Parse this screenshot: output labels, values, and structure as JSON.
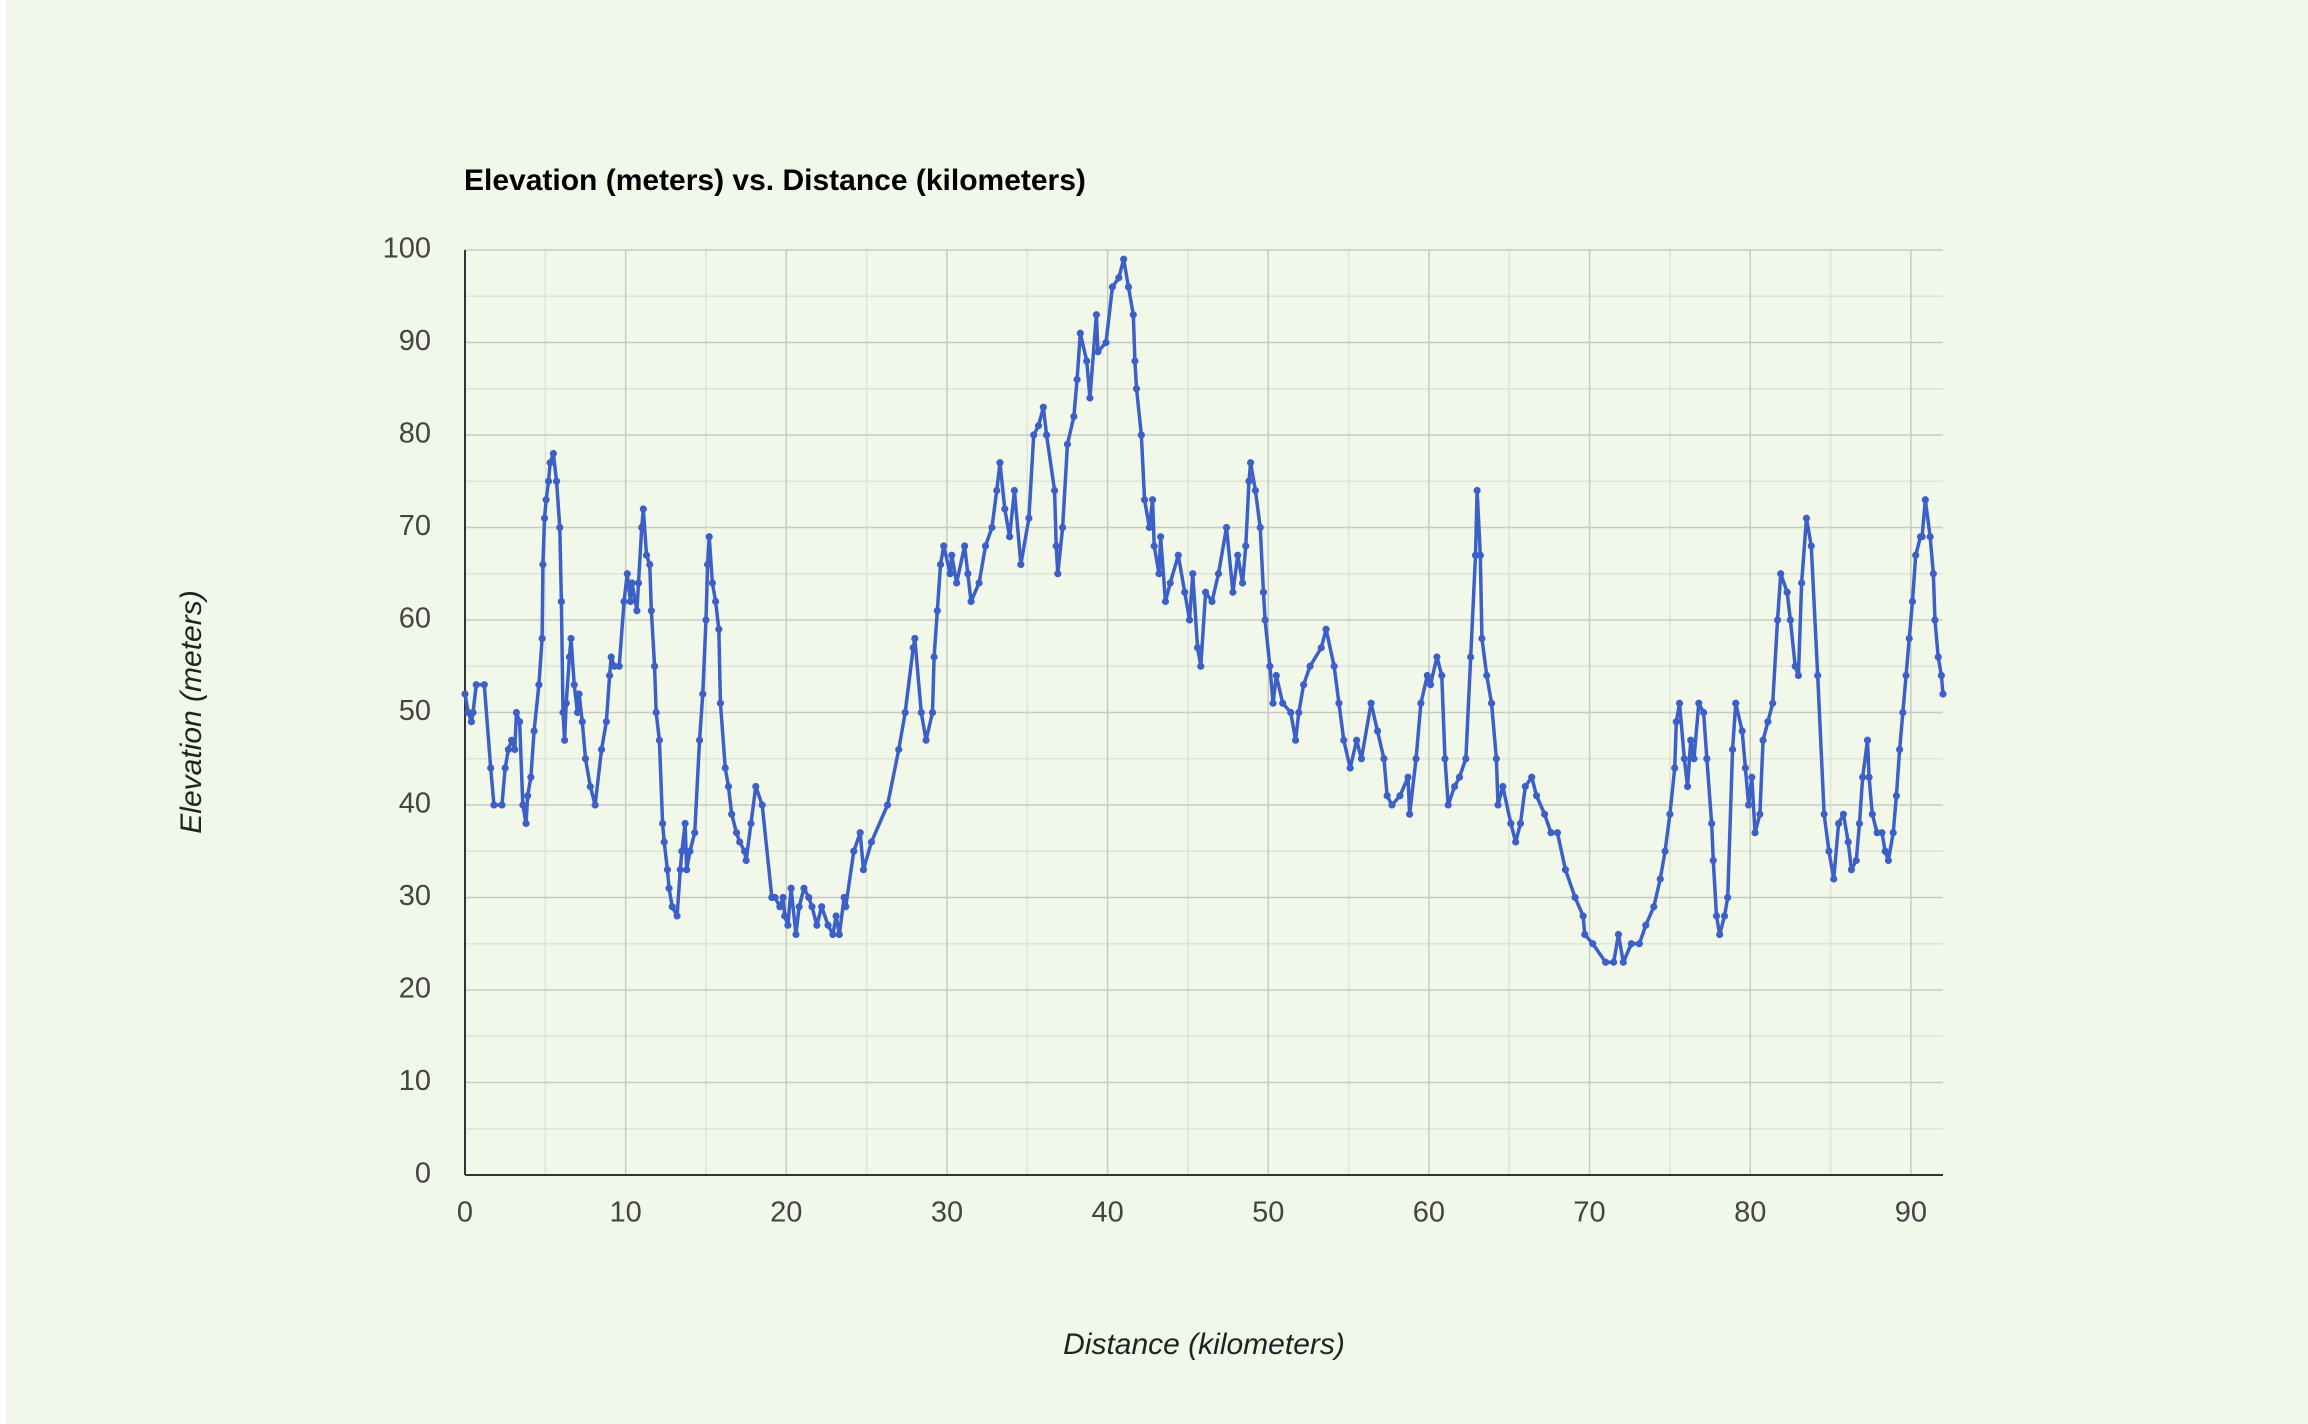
{
  "chart_data": {
    "type": "line",
    "title": "Elevation (meters) vs. Distance (kilometers)",
    "x_label": "Distance (kilometers)",
    "y_label": "Elevation (meters)",
    "color": "#3d5fc8",
    "grid": true,
    "minor_grid": true,
    "xlim": [
      0,
      92
    ],
    "xticks": [
      0,
      10,
      20,
      30,
      40,
      50,
      60,
      70,
      80,
      90
    ],
    "ylim": [
      0,
      100
    ],
    "yticks": [
      0,
      10,
      20,
      30,
      40,
      50,
      60,
      70,
      80,
      90,
      100
    ],
    "x": [
      0,
      0.2,
      0.4,
      0.5,
      0.7,
      1.2,
      1.6,
      1.8,
      2.3,
      2.5,
      2.7,
      2.9,
      3.1,
      3.2,
      3.4,
      3.6,
      3.8,
      3.9,
      4.1,
      4.3,
      4.6,
      4.8,
      4.85,
      4.95,
      5.05,
      5.2,
      5.3,
      5.5,
      5.7,
      5.9,
      6.0,
      6.1,
      6.2,
      6.3,
      6.5,
      6.6,
      6.8,
      7.0,
      7.1,
      7.3,
      7.5,
      7.8,
      8.1,
      8.5,
      8.8,
      9.0,
      9.1,
      9.3,
      9.6,
      9.9,
      10.1,
      10.3,
      10.4,
      10.7,
      10.8,
      11.0,
      11.1,
      11.3,
      11.5,
      11.6,
      11.8,
      11.9,
      12.1,
      12.3,
      12.4,
      12.6,
      12.7,
      12.9,
      13.2,
      13.4,
      13.5,
      13.7,
      13.8,
      14.0,
      14.3,
      14.6,
      14.8,
      15.0,
      15.1,
      15.2,
      15.4,
      15.6,
      15.8,
      15.9,
      16.2,
      16.4,
      16.6,
      16.9,
      17.1,
      17.4,
      17.5,
      17.8,
      18.1,
      18.5,
      19.1,
      19.3,
      19.6,
      19.8,
      19.9,
      20.1,
      20.3,
      20.6,
      20.8,
      21.1,
      21.4,
      21.6,
      21.9,
      22.2,
      22.6,
      22.9,
      23.1,
      23.3,
      23.6,
      23.7,
      24.2,
      24.6,
      24.8,
      25.3,
      26.3,
      27.0,
      27.4,
      27.9,
      28.0,
      28.4,
      28.7,
      29.1,
      29.2,
      29.4,
      29.6,
      29.8,
      30.2,
      30.3,
      30.6,
      31.1,
      31.3,
      31.5,
      32.0,
      32.4,
      32.8,
      33.1,
      33.3,
      33.6,
      33.9,
      34.2,
      34.6,
      35.1,
      35.4,
      35.7,
      36.0,
      36.2,
      36.7,
      36.8,
      36.9,
      37.2,
      37.5,
      37.9,
      38.1,
      38.3,
      38.7,
      38.9,
      39.3,
      39.4,
      39.9,
      40.3,
      40.7,
      41.0,
      41.3,
      41.6,
      41.7,
      41.8,
      42.1,
      42.3,
      42.6,
      42.8,
      42.9,
      43.2,
      43.3,
      43.6,
      43.9,
      44.4,
      44.8,
      45.1,
      45.3,
      45.6,
      45.8,
      46.1,
      46.5,
      46.9,
      47.4,
      47.8,
      48.1,
      48.4,
      48.6,
      48.8,
      48.9,
      49.2,
      49.5,
      49.7,
      49.8,
      50.1,
      50.3,
      50.5,
      50.9,
      51.4,
      51.7,
      51.9,
      52.2,
      52.6,
      53.3,
      53.6,
      54.1,
      54.4,
      54.7,
      55.1,
      55.5,
      55.8,
      56.4,
      56.8,
      57.2,
      57.4,
      57.7,
      58.2,
      58.7,
      58.8,
      59.2,
      59.5,
      59.9,
      60.1,
      60.5,
      60.8,
      61.0,
      61.2,
      61.6,
      61.9,
      62.3,
      62.6,
      62.9,
      63.0,
      63.2,
      63.3,
      63.6,
      63.9,
      64.2,
      64.3,
      64.6,
      65.1,
      65.4,
      65.7,
      66.0,
      66.4,
      66.7,
      67.2,
      67.6,
      68.0,
      68.5,
      69.1,
      69.6,
      69.7,
      70.2,
      71.0,
      71.5,
      71.8,
      72.1,
      72.6,
      73.1,
      73.5,
      74.0,
      74.4,
      74.7,
      75.0,
      75.3,
      75.4,
      75.6,
      75.9,
      76.1,
      76.3,
      76.5,
      76.8,
      77.1,
      77.3,
      77.6,
      77.7,
      77.9,
      78.1,
      78.4,
      78.6,
      78.9,
      79.1,
      79.5,
      79.7,
      79.9,
      80.1,
      80.3,
      80.6,
      80.8,
      81.1,
      81.4,
      81.7,
      81.9,
      82.3,
      82.5,
      82.8,
      83.0,
      83.2,
      83.5,
      83.8,
      84.2,
      84.6,
      84.9,
      85.2,
      85.5,
      85.8,
      86.1,
      86.3,
      86.6,
      86.8,
      87.0,
      87.3,
      87.4,
      87.6,
      87.9,
      88.2,
      88.4,
      88.6,
      88.9,
      89.1,
      89.3,
      89.5,
      89.7,
      89.9,
      90.1,
      90.3,
      90.6,
      90.7,
      90.9,
      91.2,
      91.4,
      91.5,
      91.7,
      91.9,
      92.0
    ],
    "values": [
      52,
      50,
      49,
      50,
      53,
      53,
      44,
      40,
      40,
      44,
      46,
      47,
      46,
      50,
      49,
      40,
      38,
      41,
      43,
      48,
      53,
      58,
      66,
      71,
      73,
      75,
      77,
      78,
      75,
      70,
      62,
      50,
      47,
      51,
      56,
      58,
      53,
      50,
      52,
      49,
      45,
      42,
      40,
      46,
      49,
      54,
      56,
      55,
      55,
      62,
      65,
      62,
      64,
      61,
      64,
      70,
      72,
      67,
      66,
      61,
      55,
      50,
      47,
      38,
      36,
      33,
      31,
      29,
      28,
      33,
      35,
      38,
      33,
      35,
      37,
      47,
      52,
      60,
      66,
      69,
      64,
      62,
      59,
      51,
      44,
      42,
      39,
      37,
      36,
      35,
      34,
      38,
      42,
      40,
      30,
      30,
      29,
      30,
      28,
      27,
      31,
      26,
      29,
      31,
      30,
      29,
      27,
      29,
      27,
      26,
      28,
      26,
      30,
      29,
      35,
      37,
      33,
      36,
      40,
      46,
      50,
      57,
      58,
      50,
      47,
      50,
      56,
      61,
      66,
      68,
      65,
      67,
      64,
      68,
      65,
      62,
      64,
      68,
      70,
      74,
      77,
      72,
      69,
      74,
      66,
      71,
      80,
      81,
      83,
      80,
      74,
      68,
      65,
      70,
      79,
      82,
      86,
      91,
      88,
      84,
      93,
      89,
      90,
      96,
      97,
      99,
      96,
      93,
      88,
      85,
      80,
      73,
      70,
      73,
      68,
      65,
      69,
      62,
      64,
      67,
      63,
      60,
      65,
      57,
      55,
      63,
      62,
      65,
      70,
      63,
      67,
      64,
      68,
      75,
      77,
      74,
      70,
      63,
      60,
      55,
      51,
      54,
      51,
      50,
      47,
      50,
      53,
      55,
      57,
      59,
      55,
      51,
      47,
      44,
      47,
      45,
      51,
      48,
      45,
      41,
      40,
      41,
      43,
      39,
      45,
      51,
      54,
      53,
      56,
      54,
      45,
      40,
      42,
      43,
      45,
      56,
      67,
      74,
      67,
      58,
      54,
      51,
      45,
      40,
      42,
      38,
      36,
      38,
      42,
      43,
      41,
      39,
      37,
      37,
      33,
      30,
      28,
      26,
      25,
      23,
      23,
      26,
      23,
      25,
      25,
      27,
      29,
      32,
      35,
      39,
      44,
      49,
      51,
      45,
      42,
      47,
      45,
      51,
      50,
      45,
      38,
      34,
      28,
      26,
      28,
      30,
      46,
      51,
      48,
      44,
      40,
      43,
      37,
      39,
      47,
      49,
      51,
      60,
      65,
      63,
      60,
      55,
      54,
      64,
      71,
      68,
      54,
      39,
      35,
      32,
      38,
      39,
      36,
      33,
      34,
      38,
      43,
      47,
      43,
      39,
      37,
      37,
      35,
      34,
      37,
      41,
      46,
      50,
      54,
      58,
      62,
      67,
      69,
      69,
      73,
      69,
      65,
      60,
      56,
      54,
      52
    ]
  }
}
